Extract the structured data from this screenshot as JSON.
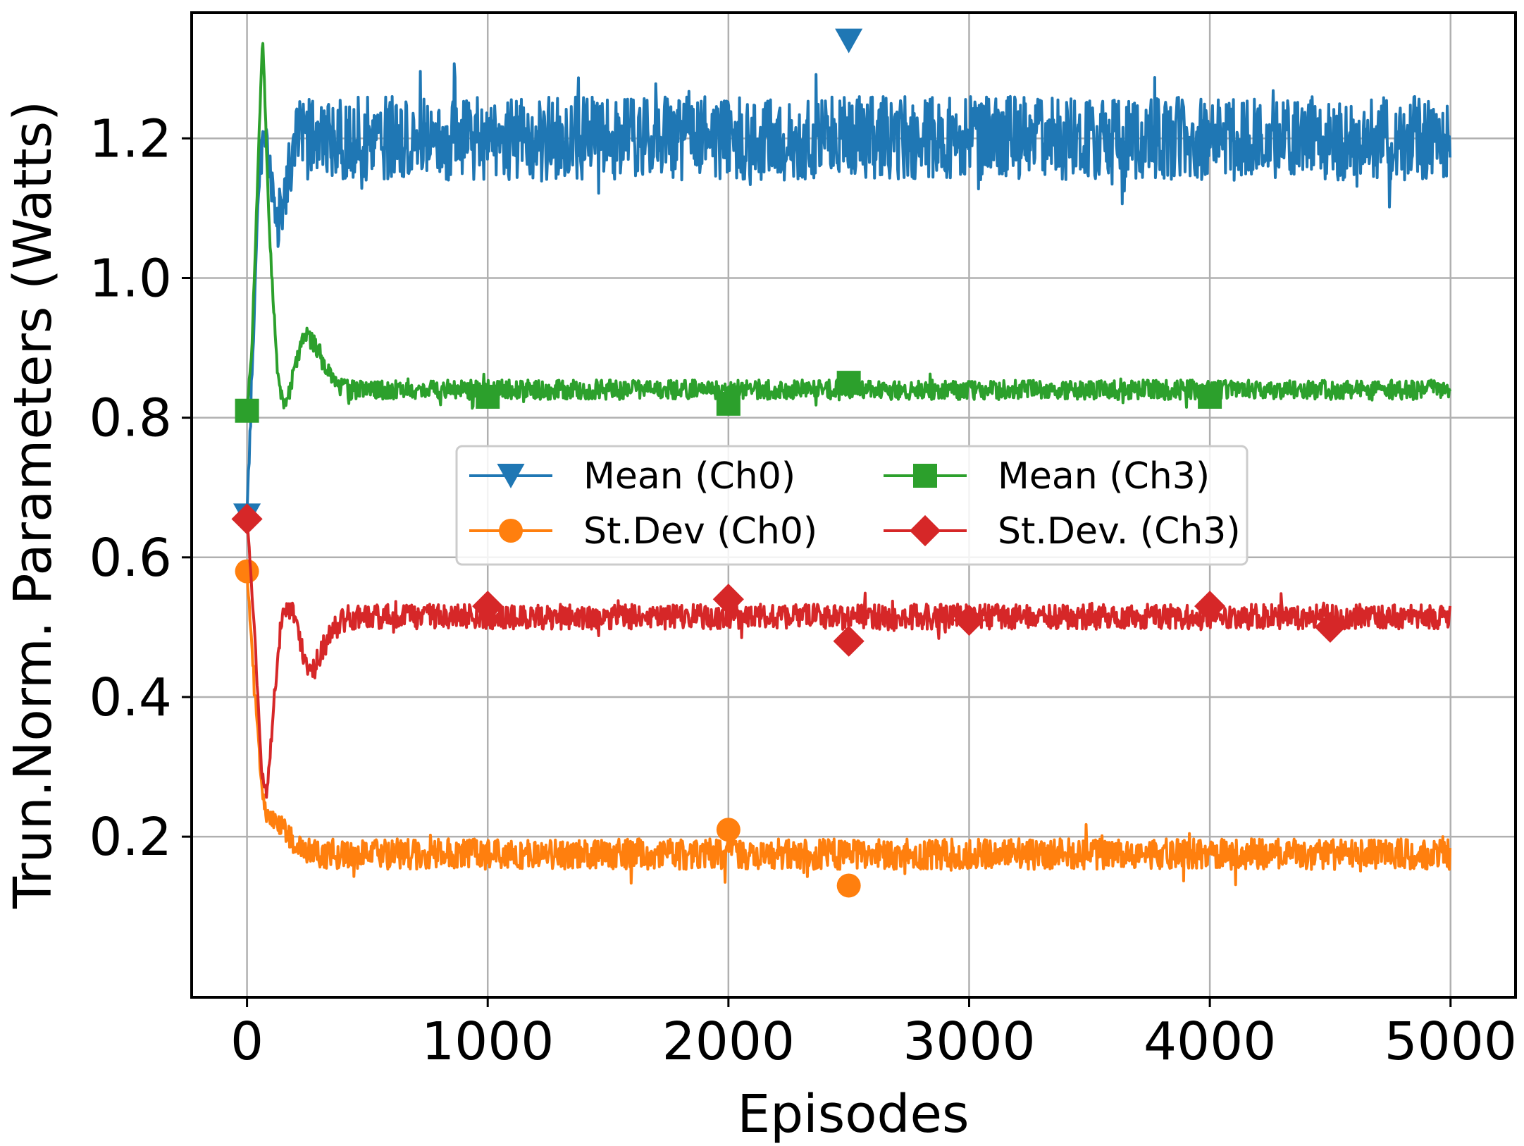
{
  "chart_data": {
    "type": "line",
    "title": "",
    "xlabel": "Episodes",
    "ylabel": "Trun.Norm. Parameters (Watts)",
    "xlim": [
      -230,
      5270
    ],
    "ylim": [
      -0.03,
      1.38
    ],
    "xticks": [
      0,
      1000,
      2000,
      3000,
      4000,
      5000
    ],
    "xtick_labels": [
      "0",
      "1000",
      "2000",
      "3000",
      "4000",
      "5000"
    ],
    "yticks": [
      0.2,
      0.4,
      0.6,
      0.8,
      1.0,
      1.2
    ],
    "ytick_labels": [
      "0.2",
      "0.4",
      "0.6",
      "0.8",
      "1.0",
      "1.2"
    ],
    "grid": true,
    "legend_position": "center",
    "legend_columns": 2,
    "marker_every": 500,
    "series": [
      {
        "name": "Mean (Ch0)",
        "color": "#1f77b4",
        "marker": "triangle-down",
        "keypoints": [
          [
            0,
            0.66
          ],
          [
            25,
            0.9
          ],
          [
            50,
            1.15
          ],
          [
            70,
            1.2
          ],
          [
            100,
            1.15
          ],
          [
            130,
            1.08
          ],
          [
            160,
            1.13
          ],
          [
            200,
            1.2
          ],
          [
            5000,
            1.2
          ]
        ],
        "noise_amplitude": 0.06,
        "marker_values": [
          [
            0,
            0.66
          ],
          [
            2500,
            1.34
          ]
        ]
      },
      {
        "name": "St.Dev (Ch0)",
        "color": "#ff7f0e",
        "marker": "circle",
        "keypoints": [
          [
            0,
            0.58
          ],
          [
            30,
            0.42
          ],
          [
            60,
            0.28
          ],
          [
            80,
            0.23
          ],
          [
            130,
            0.22
          ],
          [
            200,
            0.19
          ],
          [
            300,
            0.175
          ],
          [
            5000,
            0.175
          ]
        ],
        "noise_amplitude": 0.022,
        "marker_values": [
          [
            0,
            0.58
          ],
          [
            2000,
            0.21
          ],
          [
            2500,
            0.13
          ]
        ]
      },
      {
        "name": "Mean (Ch3)",
        "color": "#2ca02c",
        "marker": "square",
        "keypoints": [
          [
            0,
            0.81
          ],
          [
            20,
            0.9
          ],
          [
            45,
            1.15
          ],
          [
            65,
            1.35
          ],
          [
            95,
            1.05
          ],
          [
            130,
            0.85
          ],
          [
            160,
            0.81
          ],
          [
            190,
            0.86
          ],
          [
            240,
            0.92
          ],
          [
            290,
            0.9
          ],
          [
            360,
            0.85
          ],
          [
            420,
            0.84
          ],
          [
            5000,
            0.84
          ]
        ],
        "noise_amplitude": 0.014,
        "marker_values": [
          [
            0,
            0.81
          ],
          [
            1000,
            0.83
          ],
          [
            2000,
            0.82
          ],
          [
            2500,
            0.85
          ],
          [
            4000,
            0.83
          ]
        ]
      },
      {
        "name": "St.Dev. (Ch3)",
        "color": "#d62728",
        "marker": "diamond",
        "keypoints": [
          [
            0,
            0.655
          ],
          [
            30,
            0.5
          ],
          [
            60,
            0.3
          ],
          [
            80,
            0.25
          ],
          [
            110,
            0.38
          ],
          [
            150,
            0.53
          ],
          [
            190,
            0.52
          ],
          [
            240,
            0.45
          ],
          [
            280,
            0.44
          ],
          [
            340,
            0.49
          ],
          [
            420,
            0.515
          ],
          [
            5000,
            0.515
          ]
        ],
        "noise_amplitude": 0.018,
        "marker_values": [
          [
            0,
            0.655
          ],
          [
            1000,
            0.53
          ],
          [
            2000,
            0.54
          ],
          [
            2500,
            0.48
          ],
          [
            3000,
            0.51
          ],
          [
            4000,
            0.53
          ],
          [
            4500,
            0.5
          ]
        ]
      }
    ]
  }
}
